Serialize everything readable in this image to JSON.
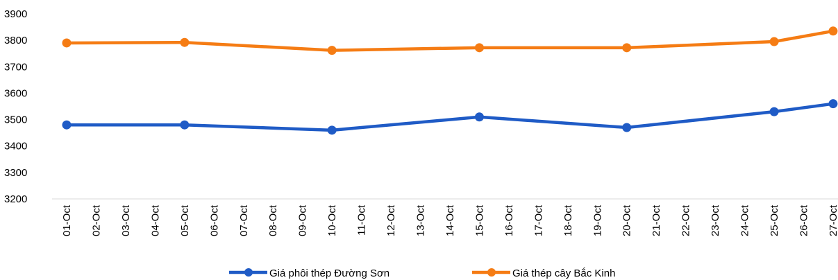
{
  "chart_data": {
    "type": "line",
    "categories": [
      "01-Oct",
      "02-Oct",
      "03-Oct",
      "04-Oct",
      "05-Oct",
      "06-Oct",
      "07-Oct",
      "08-Oct",
      "09-Oct",
      "10-Oct",
      "11-Oct",
      "12-Oct",
      "13-Oct",
      "14-Oct",
      "15-Oct",
      "16-Oct",
      "17-Oct",
      "18-Oct",
      "19-Oct",
      "20-Oct",
      "21-Oct",
      "22-Oct",
      "23-Oct",
      "24-Oct",
      "25-Oct",
      "26-Oct",
      "27-Oct"
    ],
    "series": [
      {
        "name": "Giá phôi thép Đường Sơn",
        "color": "#1f5bc6",
        "x": [
          "01-Oct",
          "05-Oct",
          "10-Oct",
          "15-Oct",
          "20-Oct",
          "25-Oct",
          "27-Oct"
        ],
        "values": [
          3480,
          3480,
          3460,
          3510,
          3470,
          3530,
          3560
        ]
      },
      {
        "name": "Giá thép cây Bắc Kinh",
        "color": "#f57c14",
        "x": [
          "01-Oct",
          "05-Oct",
          "10-Oct",
          "15-Oct",
          "20-Oct",
          "25-Oct",
          "27-Oct"
        ],
        "values": [
          3790,
          3792,
          3762,
          3772,
          3772,
          3795,
          3835
        ]
      }
    ],
    "ylim": [
      3200,
      3900
    ],
    "yticks": [
      3200,
      3300,
      3400,
      3500,
      3600,
      3700,
      3800,
      3900
    ],
    "grid": false,
    "legend": "bottom"
  }
}
